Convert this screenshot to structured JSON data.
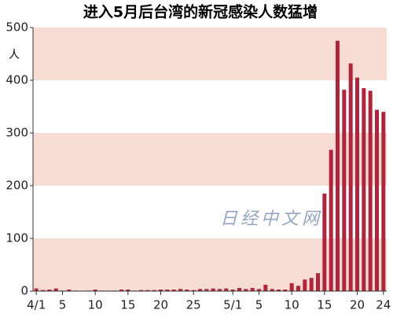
{
  "chart_data": {
    "type": "bar",
    "title": "进入5月后台湾的新冠感染人数猛增",
    "y_label": "人",
    "watermark": "日经中文网",
    "categories": [
      "4/1",
      null,
      null,
      null,
      "5",
      null,
      null,
      null,
      null,
      "10",
      null,
      null,
      null,
      null,
      "15",
      null,
      null,
      null,
      null,
      "20",
      null,
      null,
      null,
      null,
      "25",
      null,
      null,
      null,
      null,
      null,
      "5/1",
      null,
      null,
      null,
      "5",
      null,
      null,
      null,
      null,
      "10",
      null,
      null,
      null,
      null,
      "15",
      null,
      null,
      null,
      null,
      "20",
      null,
      null,
      null,
      "24"
    ],
    "values": [
      5,
      2,
      3,
      5,
      1,
      3,
      1,
      0,
      1,
      3,
      1,
      1,
      1,
      3,
      3,
      1,
      2,
      2,
      2,
      3,
      3,
      3,
      4,
      3,
      2,
      4,
      4,
      5,
      4,
      5,
      3,
      6,
      4,
      6,
      4,
      12,
      4,
      3,
      3,
      15,
      10,
      22,
      25,
      34,
      185,
      268,
      475,
      382,
      432,
      405,
      385,
      380,
      344,
      340
    ],
    "color": "#b3233a",
    "ylim": [
      0,
      500
    ],
    "yticks": [
      0,
      100,
      200,
      300,
      400,
      500
    ]
  }
}
